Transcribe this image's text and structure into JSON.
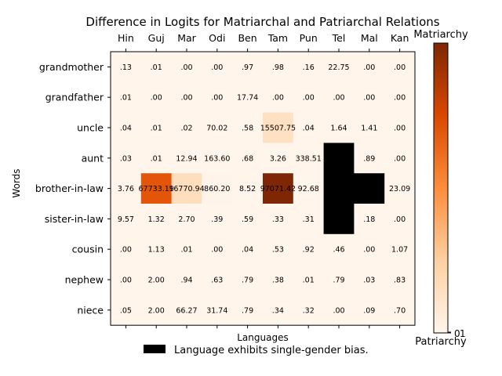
{
  "chart_data": {
    "type": "heatmap",
    "title": "Difference in Logits for Matriarchal and Patriarchal Relations",
    "xlabel": "Languages",
    "ylabel": "Words",
    "x_categories": [
      "Hin",
      "Guj",
      "Mar",
      "Odi",
      "Ben",
      "Tam",
      "Pun",
      "Tel",
      "Mal",
      "Kan"
    ],
    "y_categories": [
      "grandmother",
      "grandfather",
      "uncle",
      "aunt",
      "brother-in-law",
      "sister-in-law",
      "cousin",
      "nephew",
      "niece"
    ],
    "cell_labels": [
      [
        ".13",
        ".01",
        ".00",
        ".00",
        ".97",
        ".98",
        ".16",
        "22.75",
        ".00",
        ".00"
      ],
      [
        ".01",
        ".00",
        ".00",
        ".00",
        "17.74",
        ".00",
        ".00",
        ".00",
        ".00",
        ".00"
      ],
      [
        ".04",
        ".01",
        ".02",
        "70.02",
        ".58",
        "15507.75",
        ".04",
        "1.64",
        "1.41",
        ".00"
      ],
      [
        ".03",
        ".01",
        "12.94",
        "163.60",
        ".68",
        "3.26",
        "338.51",
        "",
        ".89",
        ".00"
      ],
      [
        "3.76",
        "67733.19",
        "16770.94",
        "860.20",
        "8.52",
        "97071.42",
        "92.68",
        "",
        "",
        "23.09"
      ],
      [
        "9.57",
        "1.32",
        "2.70",
        ".39",
        ".59",
        ".33",
        ".31",
        "",
        ".18",
        ".00"
      ],
      [
        ".00",
        "1.13",
        ".01",
        ".00",
        ".04",
        ".53",
        ".92",
        ".46",
        ".00",
        "1.07"
      ],
      [
        ".00",
        "2.00",
        ".94",
        ".63",
        ".79",
        ".38",
        ".01",
        ".79",
        ".03",
        ".83"
      ],
      [
        ".05",
        "2.00",
        "66.27",
        "31.74",
        ".79",
        ".34",
        ".32",
        ".00",
        ".09",
        ".70"
      ]
    ],
    "values": [
      [
        0.13,
        0.01,
        0,
        0,
        0.97,
        0.98,
        0.16,
        22.75,
        0,
        0
      ],
      [
        0.01,
        0,
        0,
        0,
        17.74,
        0,
        0,
        0,
        0,
        0
      ],
      [
        0.04,
        0.01,
        0.02,
        70.02,
        0.58,
        15507.75,
        0.04,
        1.64,
        1.41,
        0
      ],
      [
        0.03,
        0.01,
        12.94,
        163.6,
        0.68,
        3.26,
        338.51,
        null,
        0.89,
        0
      ],
      [
        3.76,
        67733.19,
        16770.94,
        860.2,
        8.52,
        97071.42,
        92.68,
        null,
        null,
        23.09
      ],
      [
        9.57,
        1.32,
        2.7,
        0.39,
        0.59,
        0.33,
        0.31,
        null,
        0.18,
        0
      ],
      [
        0,
        1.13,
        0.01,
        0,
        0.04,
        0.53,
        0.92,
        0.46,
        0,
        1.07
      ],
      [
        0,
        2,
        0.94,
        0.63,
        0.79,
        0.38,
        0.01,
        0.79,
        0.03,
        0.83
      ],
      [
        0.05,
        2,
        66.27,
        31.74,
        0.79,
        0.34,
        0.32,
        0,
        0.09,
        0.7
      ]
    ],
    "value_range": [
      0,
      97071.42
    ],
    "colormap": "Oranges",
    "bias_color": "#000000",
    "colorbar": {
      "top_label": "Matriarchy",
      "bottom_label": "Patriarchy",
      "tick_labels": [
        "0",
        "1"
      ]
    },
    "legend": {
      "label": "Language exhibits single-gender bias.",
      "color": "#000000",
      "placement": "bottom-center"
    }
  }
}
